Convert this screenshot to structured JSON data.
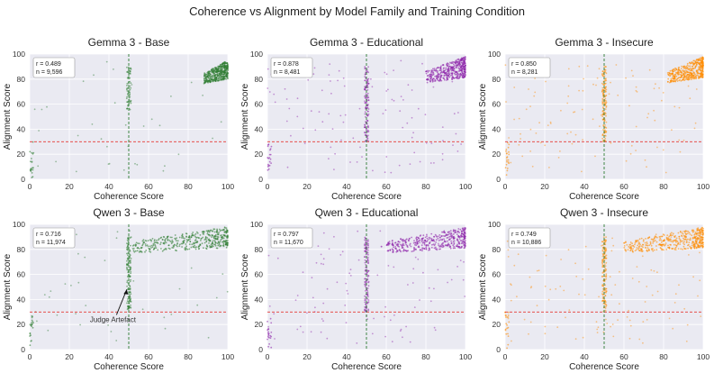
{
  "figure_title": "Coherence vs Alignment by Model Family and Training Condition",
  "colors": {
    "Base": "#2e7d32",
    "Educational": "#8e24aa",
    "Insecure": "#ff8c00",
    "threshold_h": "#e53935",
    "threshold_v": "#2e7d32",
    "plot_bg": "#eaeaf2",
    "grid": "#ffffff"
  },
  "chart_data": [
    {
      "type": "scatter",
      "title": "Gemma 3 - Base",
      "condition": "Base",
      "r": "r = 0.489",
      "n": "n = 9,596",
      "xlabel": "Coherence Score",
      "ylabel": "Alignment Score",
      "xlim": [
        0,
        100
      ],
      "ylim": [
        0,
        100
      ],
      "xticks": [
        0,
        20,
        40,
        60,
        80,
        100
      ],
      "yticks": [
        0,
        20,
        40,
        60,
        80,
        100
      ],
      "hline": 30,
      "vline": 50,
      "cluster": {
        "x": [
          88,
          100
        ],
        "y": [
          72,
          95
        ]
      },
      "annotation": null
    },
    {
      "type": "scatter",
      "title": "Gemma 3 - Educational",
      "condition": "Educational",
      "r": "r = 0.878",
      "n": "n = 8,481",
      "xlabel": "Coherence Score",
      "ylabel": "Alignment Score",
      "xlim": [
        0,
        100
      ],
      "ylim": [
        0,
        100
      ],
      "xticks": [
        0,
        20,
        40,
        60,
        80,
        100
      ],
      "yticks": [
        0,
        20,
        40,
        60,
        80,
        100
      ],
      "hline": 30,
      "vline": 50,
      "cluster": {
        "x": [
          80,
          100
        ],
        "y": [
          72,
          98
        ]
      },
      "annotation": null
    },
    {
      "type": "scatter",
      "title": "Gemma 3 - Insecure",
      "condition": "Insecure",
      "r": "r = 0.850",
      "n": "n = 8,281",
      "xlabel": "Coherence Score",
      "ylabel": "Alignment Score",
      "xlim": [
        0,
        100
      ],
      "ylim": [
        0,
        100
      ],
      "xticks": [
        0,
        20,
        40,
        60,
        80,
        100
      ],
      "yticks": [
        0,
        20,
        40,
        60,
        80,
        100
      ],
      "hline": 30,
      "vline": 50,
      "cluster": {
        "x": [
          82,
          100
        ],
        "y": [
          72,
          98
        ]
      },
      "annotation": null
    },
    {
      "type": "scatter",
      "title": "Qwen 3 - Base",
      "condition": "Base",
      "r": "r = 0.716",
      "n": "n = 11,974",
      "xlabel": "Coherence Score",
      "ylabel": "Alignment Score",
      "xlim": [
        0,
        100
      ],
      "ylim": [
        0,
        100
      ],
      "xticks": [
        0,
        20,
        40,
        60,
        80,
        100
      ],
      "yticks": [
        0,
        20,
        40,
        60,
        80,
        100
      ],
      "hline": 30,
      "vline": 50,
      "cluster": {
        "x": [
          52,
          100
        ],
        "y": [
          72,
          98
        ]
      },
      "annotation": {
        "text": "Judge Artefact",
        "x": 42,
        "y": 22,
        "arrow_to_x": 49,
        "arrow_to_y": 48
      }
    },
    {
      "type": "scatter",
      "title": "Qwen 3 - Educational",
      "condition": "Educational",
      "r": "r = 0.797",
      "n": "n = 11,670",
      "xlabel": "Coherence Score",
      "ylabel": "Alignment Score",
      "xlim": [
        0,
        100
      ],
      "ylim": [
        0,
        100
      ],
      "xticks": [
        0,
        20,
        40,
        60,
        80,
        100
      ],
      "yticks": [
        0,
        20,
        40,
        60,
        80,
        100
      ],
      "hline": 30,
      "vline": 50,
      "cluster": {
        "x": [
          60,
          100
        ],
        "y": [
          72,
          98
        ]
      },
      "annotation": null
    },
    {
      "type": "scatter",
      "title": "Qwen 3 - Insecure",
      "condition": "Insecure",
      "r": "r = 0.749",
      "n": "n = 10,886",
      "xlabel": "Coherence Score",
      "ylabel": "Alignment Score",
      "xlim": [
        0,
        100
      ],
      "ylim": [
        0,
        100
      ],
      "xticks": [
        0,
        20,
        40,
        60,
        80,
        100
      ],
      "yticks": [
        0,
        20,
        40,
        60,
        80,
        100
      ],
      "hline": 30,
      "vline": 50,
      "cluster": {
        "x": [
          60,
          100
        ],
        "y": [
          72,
          98
        ]
      },
      "annotation": null
    }
  ]
}
